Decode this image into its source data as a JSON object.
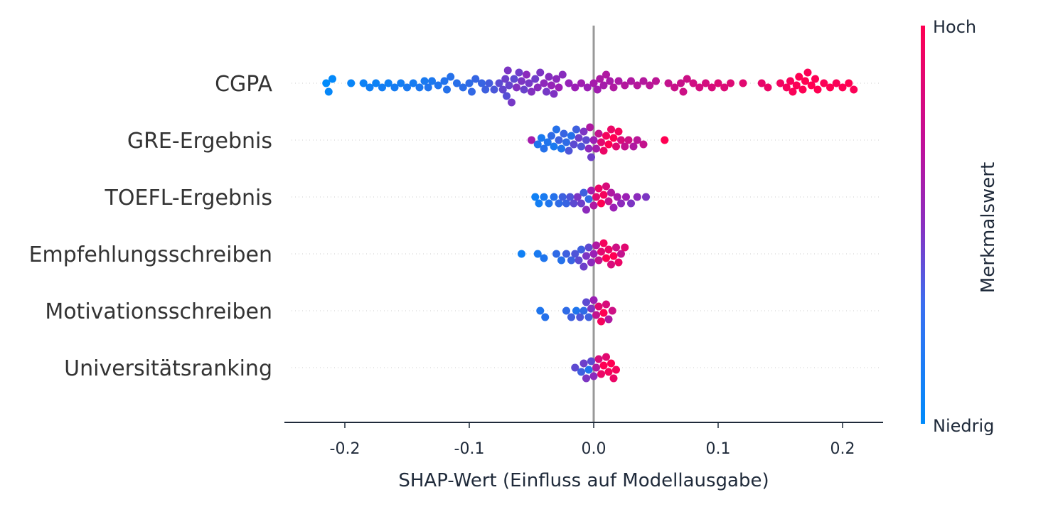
{
  "chart_data": {
    "type": "scatter",
    "subtype": "shap-beeswarm",
    "xlabel": "SHAP-Wert (Einfluss auf Modellausgabe)",
    "xlim": [
      -0.25,
      0.23
    ],
    "xticks": [
      "-0.2",
      "-0.1",
      "0.0",
      "0.1",
      "0.2"
    ],
    "xtick_values": [
      -0.2,
      -0.1,
      0.0,
      0.1,
      0.2
    ],
    "grid": false,
    "colorbar": {
      "label": "Merkmalswert",
      "high": "Hoch",
      "low": "Niedrig",
      "low_color": "#008bfb",
      "mid_color": "#9b1fb5",
      "high_color": "#ff0052"
    },
    "features": [
      {
        "name": "CGPA",
        "points": [
          [
            -0.215,
            0.0
          ],
          [
            -0.213,
            0.02
          ],
          [
            -0.21,
            0.01
          ],
          [
            -0.195,
            0.03
          ],
          [
            -0.185,
            0.04
          ],
          [
            -0.18,
            0.05
          ],
          [
            -0.175,
            0.04
          ],
          [
            -0.17,
            0.06
          ],
          [
            -0.165,
            0.05
          ],
          [
            -0.16,
            0.07
          ],
          [
            -0.155,
            0.06
          ],
          [
            -0.15,
            0.08
          ],
          [
            -0.145,
            0.07
          ],
          [
            -0.14,
            0.09
          ],
          [
            -0.136,
            0.08
          ],
          [
            -0.133,
            0.1
          ],
          [
            -0.13,
            0.09
          ],
          [
            -0.125,
            0.1
          ],
          [
            -0.12,
            0.11
          ],
          [
            -0.118,
            0.12
          ],
          [
            -0.115,
            0.12
          ],
          [
            -0.11,
            0.13
          ],
          [
            -0.105,
            0.14
          ],
          [
            -0.1,
            0.15
          ],
          [
            -0.098,
            0.16
          ],
          [
            -0.095,
            0.17
          ],
          [
            -0.09,
            0.18
          ],
          [
            -0.087,
            0.2
          ],
          [
            -0.084,
            0.22
          ],
          [
            -0.08,
            0.24
          ],
          [
            -0.076,
            0.3
          ],
          [
            -0.073,
            0.32
          ],
          [
            -0.071,
            0.35
          ],
          [
            -0.07,
            0.28
          ],
          [
            -0.069,
            0.4
          ],
          [
            -0.068,
            0.33
          ],
          [
            -0.066,
            0.38
          ],
          [
            -0.064,
            0.3
          ],
          [
            -0.062,
            0.42
          ],
          [
            -0.06,
            0.36
          ],
          [
            -0.058,
            0.4
          ],
          [
            -0.056,
            0.34
          ],
          [
            -0.054,
            0.45
          ],
          [
            -0.052,
            0.38
          ],
          [
            -0.05,
            0.42
          ],
          [
            -0.047,
            0.36
          ],
          [
            -0.045,
            0.44
          ],
          [
            -0.043,
            0.4
          ],
          [
            -0.04,
            0.46
          ],
          [
            -0.038,
            0.38
          ],
          [
            -0.036,
            0.43
          ],
          [
            -0.034,
            0.48
          ],
          [
            -0.032,
            0.41
          ],
          [
            -0.03,
            0.45
          ],
          [
            -0.028,
            0.5
          ],
          [
            -0.025,
            0.44
          ],
          [
            -0.02,
            0.48
          ],
          [
            -0.015,
            0.5
          ],
          [
            -0.01,
            0.52
          ],
          [
            -0.005,
            0.5
          ],
          [
            0.0,
            0.55
          ],
          [
            0.003,
            0.53
          ],
          [
            0.005,
            0.58
          ],
          [
            0.008,
            0.55
          ],
          [
            0.01,
            0.6
          ],
          [
            0.013,
            0.56
          ],
          [
            0.016,
            0.6
          ],
          [
            0.02,
            0.58
          ],
          [
            0.025,
            0.62
          ],
          [
            0.03,
            0.6
          ],
          [
            0.035,
            0.63
          ],
          [
            0.04,
            0.62
          ],
          [
            0.045,
            0.65
          ],
          [
            0.05,
            0.66
          ],
          [
            0.06,
            0.7
          ],
          [
            0.065,
            0.72
          ],
          [
            0.07,
            0.72
          ],
          [
            0.072,
            0.74
          ],
          [
            0.075,
            0.74
          ],
          [
            0.08,
            0.76
          ],
          [
            0.085,
            0.78
          ],
          [
            0.09,
            0.78
          ],
          [
            0.095,
            0.8
          ],
          [
            0.1,
            0.82
          ],
          [
            0.105,
            0.82
          ],
          [
            0.11,
            0.83
          ],
          [
            0.12,
            0.85
          ],
          [
            0.135,
            0.88
          ],
          [
            0.14,
            0.9
          ],
          [
            0.15,
            0.93
          ],
          [
            0.155,
            0.95
          ],
          [
            0.158,
            0.96
          ],
          [
            0.16,
            0.97
          ],
          [
            0.163,
            0.98
          ],
          [
            0.165,
            1.0
          ],
          [
            0.168,
            0.99
          ],
          [
            0.17,
            1.0
          ],
          [
            0.172,
            0.98
          ],
          [
            0.175,
            1.0
          ],
          [
            0.178,
            0.99
          ],
          [
            0.18,
            1.0
          ],
          [
            0.185,
            0.98
          ],
          [
            0.19,
            1.0
          ],
          [
            0.195,
            0.97
          ],
          [
            0.2,
            0.99
          ],
          [
            0.205,
            1.0
          ],
          [
            0.209,
            0.98
          ]
        ]
      },
      {
        "name": "GRE-Ergebnis",
        "points": [
          [
            -0.05,
            0.55
          ],
          [
            -0.045,
            0.1
          ],
          [
            -0.042,
            0.08
          ],
          [
            -0.04,
            0.12
          ],
          [
            -0.037,
            0.1
          ],
          [
            -0.034,
            0.15
          ],
          [
            -0.032,
            0.08
          ],
          [
            -0.03,
            0.12
          ],
          [
            -0.028,
            0.2
          ],
          [
            -0.026,
            0.1
          ],
          [
            -0.024,
            0.18
          ],
          [
            -0.022,
            0.15
          ],
          [
            -0.02,
            0.25
          ],
          [
            -0.018,
            0.12
          ],
          [
            -0.016,
            0.3
          ],
          [
            -0.014,
            0.2
          ],
          [
            -0.012,
            0.35
          ],
          [
            -0.01,
            0.25
          ],
          [
            -0.008,
            0.4
          ],
          [
            -0.006,
            0.3
          ],
          [
            -0.004,
            0.45
          ],
          [
            -0.002,
            0.35
          ],
          [
            -0.003,
            0.6
          ],
          [
            0.0,
            0.5
          ],
          [
            0.002,
            0.55
          ],
          [
            0.004,
            0.7
          ],
          [
            0.006,
            0.85
          ],
          [
            0.008,
            0.9
          ],
          [
            0.01,
            0.95
          ],
          [
            0.012,
            1.0
          ],
          [
            0.014,
            0.9
          ],
          [
            0.016,
            1.0
          ],
          [
            0.018,
            0.85
          ],
          [
            0.02,
            0.95
          ],
          [
            0.022,
            0.8
          ],
          [
            0.025,
            0.7
          ],
          [
            0.028,
            0.75
          ],
          [
            0.032,
            0.6
          ],
          [
            0.035,
            0.65
          ],
          [
            0.04,
            0.7
          ],
          [
            0.057,
            1.0
          ]
        ]
      },
      {
        "name": "TOEFL-Ergebnis",
        "points": [
          [
            -0.047,
            0.05
          ],
          [
            -0.044,
            0.06
          ],
          [
            -0.04,
            0.08
          ],
          [
            -0.036,
            0.1
          ],
          [
            -0.032,
            0.12
          ],
          [
            -0.028,
            0.15
          ],
          [
            -0.025,
            0.2
          ],
          [
            -0.022,
            0.18
          ],
          [
            -0.019,
            0.25
          ],
          [
            -0.016,
            0.3
          ],
          [
            -0.013,
            0.4
          ],
          [
            -0.01,
            0.35
          ],
          [
            -0.008,
            0.2
          ],
          [
            -0.006,
            0.45
          ],
          [
            -0.004,
            0.15
          ],
          [
            -0.002,
            0.55
          ],
          [
            0.0,
            0.6
          ],
          [
            0.002,
            0.85
          ],
          [
            0.004,
            0.9
          ],
          [
            0.006,
            1.0
          ],
          [
            0.008,
            0.95
          ],
          [
            0.01,
            0.8
          ],
          [
            0.012,
            0.7
          ],
          [
            0.014,
            0.6
          ],
          [
            0.016,
            0.5
          ],
          [
            0.019,
            0.55
          ],
          [
            0.022,
            0.45
          ],
          [
            0.026,
            0.5
          ],
          [
            0.03,
            0.4
          ],
          [
            0.035,
            0.45
          ],
          [
            0.042,
            0.4
          ]
        ]
      },
      {
        "name": "Empfehlungsschreiben",
        "points": [
          [
            -0.058,
            0.05
          ],
          [
            -0.045,
            0.08
          ],
          [
            -0.04,
            0.1
          ],
          [
            -0.03,
            0.15
          ],
          [
            -0.026,
            0.12
          ],
          [
            -0.022,
            0.2
          ],
          [
            -0.018,
            0.18
          ],
          [
            -0.015,
            0.25
          ],
          [
            -0.012,
            0.3
          ],
          [
            -0.01,
            0.2
          ],
          [
            -0.008,
            0.35
          ],
          [
            -0.006,
            0.4
          ],
          [
            -0.004,
            0.3
          ],
          [
            -0.002,
            0.45
          ],
          [
            0.0,
            0.5
          ],
          [
            0.002,
            0.6
          ],
          [
            0.004,
            0.7
          ],
          [
            0.006,
            0.85
          ],
          [
            0.008,
            0.95
          ],
          [
            0.01,
            1.0
          ],
          [
            0.012,
            0.9
          ],
          [
            0.014,
            0.8
          ],
          [
            0.016,
            1.0
          ],
          [
            0.018,
            0.75
          ],
          [
            0.02,
            0.9
          ],
          [
            0.022,
            0.7
          ],
          [
            0.025,
            0.85
          ]
        ]
      },
      {
        "name": "Motivationsschreiben",
        "points": [
          [
            -0.043,
            0.1
          ],
          [
            -0.039,
            0.12
          ],
          [
            -0.022,
            0.15
          ],
          [
            -0.018,
            0.2
          ],
          [
            -0.014,
            0.1
          ],
          [
            -0.011,
            0.25
          ],
          [
            -0.008,
            0.15
          ],
          [
            -0.006,
            0.3
          ],
          [
            -0.004,
            0.2
          ],
          [
            -0.002,
            0.4
          ],
          [
            0.0,
            0.5
          ],
          [
            0.002,
            0.7
          ],
          [
            0.004,
            0.85
          ],
          [
            0.006,
            0.95
          ],
          [
            0.008,
            1.0
          ],
          [
            0.01,
            0.8
          ],
          [
            0.012,
            0.6
          ],
          [
            0.015,
            0.75
          ]
        ]
      },
      {
        "name": "Universitätsranking",
        "points": [
          [
            -0.015,
            0.3
          ],
          [
            -0.01,
            0.2
          ],
          [
            -0.008,
            0.35
          ],
          [
            -0.006,
            0.4
          ],
          [
            -0.004,
            0.1
          ],
          [
            -0.002,
            0.3
          ],
          [
            0.0,
            0.45
          ],
          [
            0.002,
            0.6
          ],
          [
            0.004,
            0.8
          ],
          [
            0.006,
            0.9
          ],
          [
            0.008,
            1.0
          ],
          [
            0.01,
            0.85
          ],
          [
            0.012,
            0.95
          ],
          [
            0.014,
            1.0
          ],
          [
            0.016,
            0.9
          ],
          [
            0.018,
            0.95
          ]
        ]
      }
    ]
  }
}
